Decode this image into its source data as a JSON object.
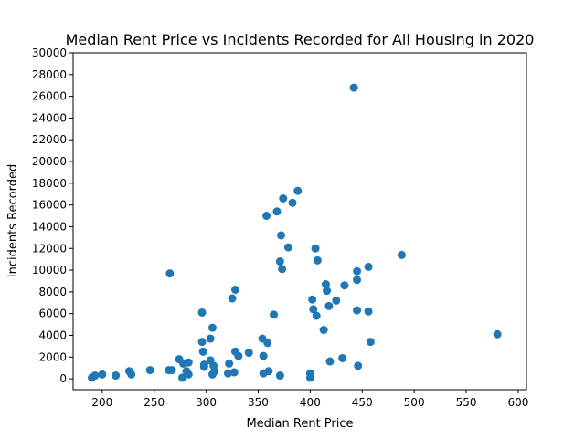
{
  "chart_data": {
    "type": "scatter",
    "title": "Median Rent Price vs Incidents Recorded for All Housing in 2020",
    "xlabel": "Median Rent Price",
    "ylabel": "Incidents Recorded",
    "xlim": [
      172,
      608
    ],
    "ylim": [
      -1000,
      30000
    ],
    "xticks": [
      200,
      250,
      300,
      350,
      400,
      450,
      500,
      550,
      600
    ],
    "yticks": [
      0,
      2000,
      4000,
      6000,
      8000,
      10000,
      12000,
      14000,
      16000,
      18000,
      20000,
      22000,
      24000,
      26000,
      28000,
      30000
    ],
    "grid": false,
    "marker_color": "#1f77b4",
    "series": [
      {
        "points": [
          [
            190,
            100
          ],
          [
            193,
            300
          ],
          [
            200,
            400
          ],
          [
            213,
            300
          ],
          [
            226,
            700
          ],
          [
            228,
            400
          ],
          [
            246,
            800
          ],
          [
            264,
            800
          ],
          [
            265,
            9700
          ],
          [
            267,
            800
          ],
          [
            274,
            1800
          ],
          [
            277,
            100
          ],
          [
            278,
            1400
          ],
          [
            281,
            700
          ],
          [
            283,
            1500
          ],
          [
            283,
            400
          ],
          [
            296,
            6100
          ],
          [
            296,
            3400
          ],
          [
            297,
            2500
          ],
          [
            298,
            1100
          ],
          [
            298,
            1300
          ],
          [
            304,
            3700
          ],
          [
            304,
            1700
          ],
          [
            306,
            4700
          ],
          [
            306,
            400
          ],
          [
            307,
            1200
          ],
          [
            308,
            700
          ],
          [
            321,
            500
          ],
          [
            322,
            1400
          ],
          [
            325,
            7400
          ],
          [
            327,
            600
          ],
          [
            328,
            8200
          ],
          [
            328,
            2500
          ],
          [
            331,
            2100
          ],
          [
            341,
            2400
          ],
          [
            354,
            3700
          ],
          [
            355,
            2100
          ],
          [
            355,
            500
          ],
          [
            358,
            15000
          ],
          [
            359,
            3300
          ],
          [
            360,
            700
          ],
          [
            365,
            5900
          ],
          [
            368,
            15400
          ],
          [
            371,
            10800
          ],
          [
            371,
            300
          ],
          [
            372,
            13200
          ],
          [
            373,
            10100
          ],
          [
            374,
            16600
          ],
          [
            379,
            12100
          ],
          [
            383,
            16200
          ],
          [
            388,
            17300
          ],
          [
            400,
            500
          ],
          [
            400,
            100
          ],
          [
            402,
            7300
          ],
          [
            403,
            6400
          ],
          [
            405,
            12000
          ],
          [
            406,
            5800
          ],
          [
            407,
            10900
          ],
          [
            413,
            4500
          ],
          [
            415,
            8700
          ],
          [
            416,
            8100
          ],
          [
            418,
            6700
          ],
          [
            419,
            1600
          ],
          [
            425,
            7200
          ],
          [
            431,
            1900
          ],
          [
            433,
            8600
          ],
          [
            442,
            26800
          ],
          [
            445,
            9900
          ],
          [
            445,
            9100
          ],
          [
            445,
            6300
          ],
          [
            446,
            1200
          ],
          [
            456,
            10300
          ],
          [
            456,
            6200
          ],
          [
            458,
            3400
          ],
          [
            488,
            11400
          ],
          [
            580,
            4100
          ]
        ]
      }
    ]
  }
}
